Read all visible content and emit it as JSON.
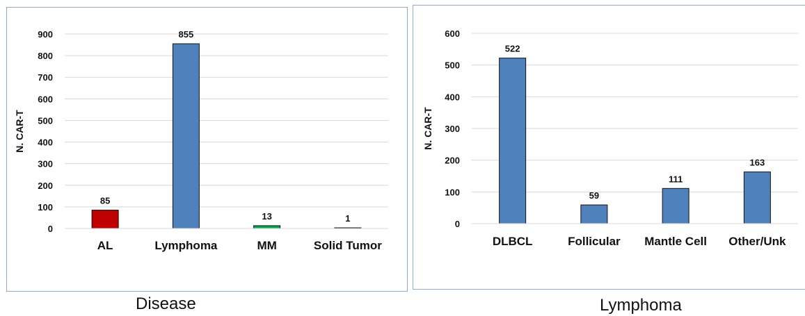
{
  "captions": {
    "left": "Disease",
    "right": "Lymphoma"
  },
  "chart_data": [
    {
      "type": "bar",
      "ylabel": "N. CAR-T",
      "ylim": [
        0,
        900
      ],
      "yticks": [
        0,
        100,
        200,
        300,
        400,
        500,
        600,
        700,
        800,
        900
      ],
      "categories": [
        "AL",
        "Lymphoma",
        "MM",
        "Solid Tumor"
      ],
      "values": [
        85,
        855,
        13,
        1
      ],
      "colors": [
        "#c00000",
        "#4f81bd",
        "#00b050",
        "#4f81bd"
      ],
      "grid": true
    },
    {
      "type": "bar",
      "ylabel": "N. CAR-T",
      "ylim": [
        0,
        600
      ],
      "yticks": [
        0,
        100,
        200,
        300,
        400,
        500,
        600
      ],
      "categories": [
        "DLBCL",
        "Follicular",
        "Mantle Cell",
        "Other/Unk"
      ],
      "values": [
        522,
        59,
        111,
        163
      ],
      "colors": [
        "#4f81bd",
        "#4f81bd",
        "#4f81bd",
        "#4f81bd"
      ],
      "grid": true
    }
  ]
}
